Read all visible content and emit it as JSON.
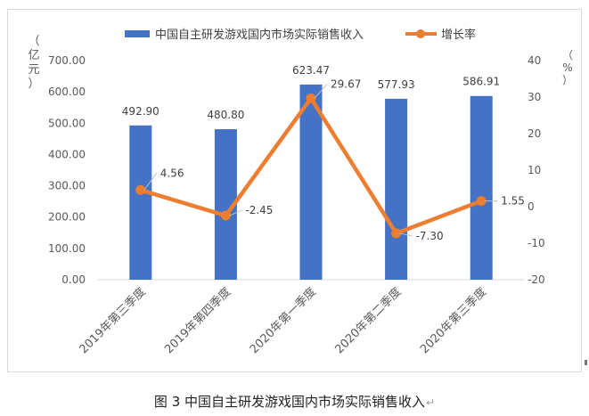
{
  "caption": "图 3  中国自主研发游戏国内市场实际销售收入",
  "caption_return_glyph": "↵",
  "chart_data": {
    "type": "bar",
    "categories": [
      "2019年第三季度",
      "2019年第四季度",
      "2020年第一季度",
      "2020年第二季度",
      "2020年第三季度"
    ],
    "series": [
      {
        "name": "中国自主研发游戏国内市场实际销售收入",
        "type": "bar",
        "axis": "left",
        "color": "#4472c4",
        "values": [
          492.9,
          480.8,
          623.47,
          577.93,
          586.91
        ],
        "labels": [
          "492.90",
          "480.80",
          "623.47",
          "577.93",
          "586.91"
        ]
      },
      {
        "name": "增长率",
        "type": "line",
        "axis": "right",
        "color": "#ed7d31",
        "values": [
          4.56,
          -2.45,
          29.67,
          -7.3,
          1.55
        ],
        "labels": [
          "4.56",
          "-2.45",
          "29.67",
          "-7.30",
          "1.55"
        ]
      }
    ],
    "y_left": {
      "label_chars": [
        "（",
        "亿",
        "元",
        "）"
      ],
      "ticks": [
        "0.00",
        "100.00",
        "200.00",
        "300.00",
        "400.00",
        "500.00",
        "600.00",
        "700.00"
      ],
      "range": [
        0,
        700
      ]
    },
    "y_right": {
      "label_chars": [
        "（",
        "%",
        "）"
      ],
      "ticks": [
        "-20",
        "-10",
        "0",
        "10",
        "20",
        "30",
        "40"
      ],
      "range": [
        -20,
        40
      ]
    },
    "legend_position": "top",
    "grid": false
  }
}
